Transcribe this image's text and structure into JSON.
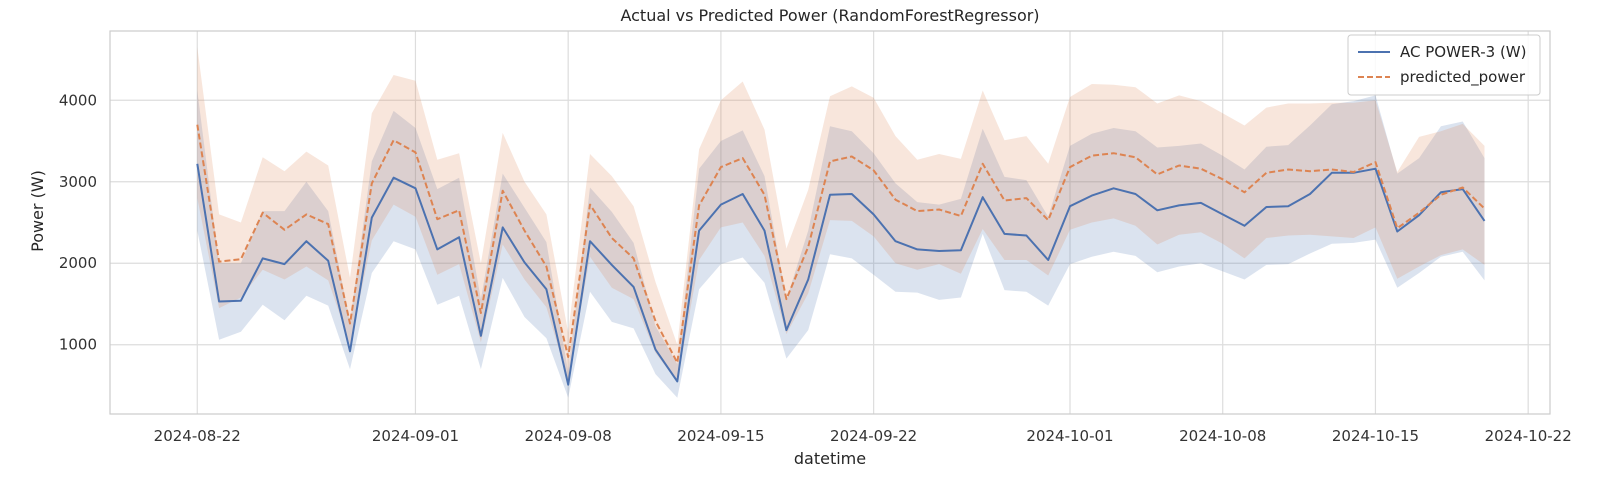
{
  "chart_data": {
    "type": "line",
    "title": "Actual vs Predicted Power (RandomForestRegressor)",
    "xlabel": "datetime",
    "ylabel": "Power (W)",
    "x_start": "2024-08-22",
    "x_end": "2024-10-19",
    "xlim": [
      "2024-08-18",
      "2024-10-23"
    ],
    "ylim": [
      150,
      4850
    ],
    "xticks": [
      "2024-08-22",
      "2024-09-01",
      "2024-09-08",
      "2024-09-15",
      "2024-09-22",
      "2024-10-01",
      "2024-10-08",
      "2024-10-15",
      "2024-10-22"
    ],
    "yticks": [
      1000,
      2000,
      3000,
      4000
    ],
    "grid": true,
    "legend_position": "top-right",
    "series": [
      {
        "name": "AC POWER-3 (W)",
        "color": "#4c72b0",
        "line_style": "solid",
        "values": [
          3220,
          1530,
          1540,
          2060,
          1990,
          2270,
          2030,
          920,
          2560,
          3050,
          2920,
          2170,
          2320,
          1110,
          2440,
          2010,
          1680,
          510,
          2270,
          1980,
          1710,
          940,
          550,
          2400,
          2720,
          2850,
          2400,
          1180,
          1800,
          2840,
          2850,
          2600,
          2270,
          2170,
          2150,
          2160,
          2810,
          2360,
          2340,
          2040,
          2700,
          2830,
          2920,
          2850,
          2650,
          2710,
          2740,
          2600,
          2460,
          2690,
          2700,
          2850,
          3110,
          3110,
          3160,
          2390,
          2590,
          2870,
          2910,
          2520
        ],
        "band_upper": [
          4120,
          2000,
          2000,
          2640,
          2640,
          3000,
          2640,
          1270,
          3250,
          3870,
          3660,
          2910,
          3050,
          1560,
          3100,
          2680,
          2260,
          660,
          2930,
          2630,
          2250,
          1230,
          760,
          3160,
          3500,
          3630,
          3070,
          1550,
          2400,
          3680,
          3620,
          3350,
          2980,
          2750,
          2720,
          2790,
          3650,
          3060,
          3020,
          2570,
          3440,
          3590,
          3660,
          3620,
          3420,
          3440,
          3470,
          3320,
          3150,
          3430,
          3450,
          3690,
          3950,
          3990,
          4060,
          3100,
          3290,
          3680,
          3740,
          3290
        ],
        "band_lower": [
          2400,
          1060,
          1160,
          1490,
          1300,
          1600,
          1480,
          700,
          1880,
          2270,
          2170,
          1490,
          1600,
          700,
          1820,
          1340,
          1080,
          350,
          1650,
          1280,
          1200,
          640,
          350,
          1680,
          1990,
          2070,
          1760,
          830,
          1180,
          2110,
          2060,
          1860,
          1650,
          1640,
          1550,
          1580,
          2360,
          1670,
          1650,
          1480,
          1990,
          2080,
          2140,
          2090,
          1890,
          1960,
          2000,
          1900,
          1800,
          1980,
          1990,
          2120,
          2240,
          2250,
          2290,
          1700,
          1880,
          2080,
          2140,
          1790
        ]
      },
      {
        "name": "predicted_power",
        "color": "#dd8452",
        "line_style": "dashed",
        "values": [
          3700,
          2020,
          2050,
          2620,
          2410,
          2600,
          2480,
          1260,
          2980,
          3510,
          3360,
          2540,
          2650,
          1390,
          2890,
          2400,
          1960,
          850,
          2720,
          2310,
          2060,
          1290,
          780,
          2710,
          3180,
          3290,
          2840,
          1560,
          2200,
          3250,
          3310,
          3140,
          2780,
          2640,
          2660,
          2580,
          3220,
          2770,
          2800,
          2530,
          3180,
          3320,
          3350,
          3300,
          3090,
          3200,
          3160,
          3030,
          2870,
          3110,
          3150,
          3130,
          3150,
          3120,
          3240,
          2430,
          2620,
          2840,
          2930,
          2670
        ],
        "band_upper": [
          4650,
          2600,
          2500,
          3300,
          3130,
          3370,
          3200,
          1820,
          3840,
          4310,
          4240,
          3270,
          3350,
          2000,
          3600,
          3000,
          2600,
          1150,
          3340,
          3070,
          2700,
          1770,
          1000,
          3400,
          4000,
          4230,
          3640,
          2180,
          2900,
          4050,
          4170,
          4030,
          3560,
          3270,
          3340,
          3280,
          4120,
          3510,
          3560,
          3220,
          4040,
          4200,
          4190,
          4160,
          3960,
          4060,
          3990,
          3840,
          3690,
          3910,
          3960,
          3960,
          3970,
          3970,
          4000,
          3120,
          3550,
          3620,
          3710,
          3440
        ],
        "band_lower": [
          2800,
          1450,
          1580,
          1920,
          1800,
          1960,
          1790,
          1000,
          2280,
          2720,
          2570,
          1860,
          1990,
          1030,
          2230,
          1800,
          1460,
          560,
          2080,
          1700,
          1560,
          900,
          540,
          2040,
          2440,
          2500,
          2090,
          1130,
          1630,
          2530,
          2520,
          2330,
          2000,
          1920,
          1990,
          1870,
          2420,
          2040,
          2040,
          1850,
          2410,
          2500,
          2550,
          2460,
          2230,
          2350,
          2380,
          2240,
          2060,
          2310,
          2340,
          2350,
          2330,
          2310,
          2440,
          1810,
          1960,
          2100,
          2170,
          1980
        ]
      }
    ]
  }
}
